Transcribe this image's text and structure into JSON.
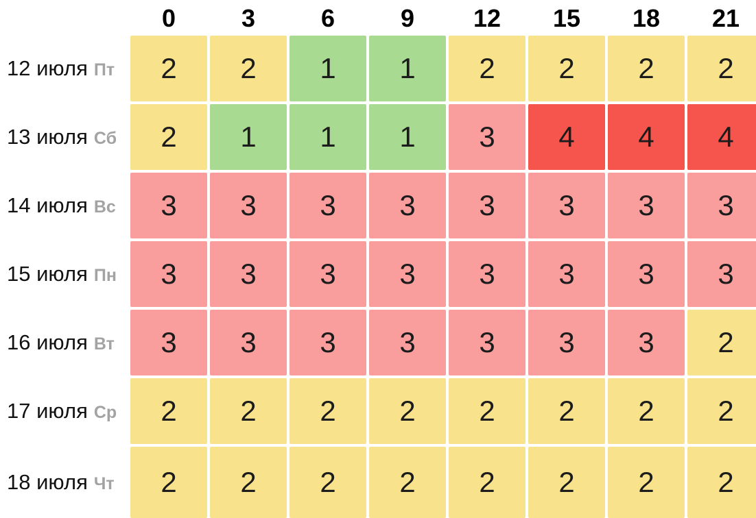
{
  "table": {
    "hours": [
      "0",
      "3",
      "6",
      "9",
      "12",
      "15",
      "18",
      "21"
    ],
    "rows": [
      {
        "date": "12 июля",
        "day": "Пт",
        "values": [
          2,
          2,
          1,
          1,
          2,
          2,
          2,
          2
        ]
      },
      {
        "date": "13 июля",
        "day": "Сб",
        "values": [
          2,
          1,
          1,
          1,
          3,
          4,
          4,
          4
        ]
      },
      {
        "date": "14 июля",
        "day": "Вс",
        "values": [
          3,
          3,
          3,
          3,
          3,
          3,
          3,
          3
        ]
      },
      {
        "date": "15 июля",
        "day": "Пн",
        "values": [
          3,
          3,
          3,
          3,
          3,
          3,
          3,
          3
        ]
      },
      {
        "date": "16 июля",
        "day": "Вт",
        "values": [
          3,
          3,
          3,
          3,
          3,
          3,
          3,
          2
        ]
      },
      {
        "date": "17 июля",
        "day": "Ср",
        "values": [
          2,
          2,
          2,
          2,
          2,
          2,
          2,
          2
        ]
      },
      {
        "date": "18 июля",
        "day": "Чт",
        "values": [
          2,
          2,
          2,
          2,
          2,
          2,
          2,
          2
        ]
      }
    ],
    "level_colors": {
      "1": "#a9da92",
      "2": "#f9e28c",
      "3": "#f99d9d",
      "4": "#f6554e"
    },
    "text_colors": {
      "cell_value": "#1c1c1c",
      "date": "#111111",
      "day_abbr": "#a3a3a3",
      "hour_header": "#000000"
    }
  },
  "chart_data": {
    "type": "heatmap",
    "title": "",
    "xlabel": "",
    "ylabel": "",
    "x": [
      0,
      3,
      6,
      9,
      12,
      15,
      18,
      21
    ],
    "categories": [
      "12 июля Пт",
      "13 июля Сб",
      "14 июля Вс",
      "15 июля Пн",
      "16 июля Вт",
      "17 июля Ср",
      "18 июля Чт"
    ],
    "series": [
      {
        "name": "12 июля Пт",
        "values": [
          2,
          2,
          1,
          1,
          2,
          2,
          2,
          2
        ]
      },
      {
        "name": "13 июля Сб",
        "values": [
          2,
          1,
          1,
          1,
          3,
          4,
          4,
          4
        ]
      },
      {
        "name": "14 июля Вс",
        "values": [
          3,
          3,
          3,
          3,
          3,
          3,
          3,
          3
        ]
      },
      {
        "name": "15 июля Пн",
        "values": [
          3,
          3,
          3,
          3,
          3,
          3,
          3,
          3
        ]
      },
      {
        "name": "16 июля Вт",
        "values": [
          3,
          3,
          3,
          3,
          3,
          3,
          3,
          2
        ]
      },
      {
        "name": "17 июля Ср",
        "values": [
          2,
          2,
          2,
          2,
          2,
          2,
          2,
          2
        ]
      },
      {
        "name": "18 июля Чт",
        "values": [
          2,
          2,
          2,
          2,
          2,
          2,
          2,
          2
        ]
      }
    ],
    "value_range": [
      1,
      4
    ],
    "color_scale": {
      "1": "#a9da92",
      "2": "#f9e28c",
      "3": "#f99d9d",
      "4": "#f6554e"
    },
    "grid": false,
    "legend": "none"
  }
}
